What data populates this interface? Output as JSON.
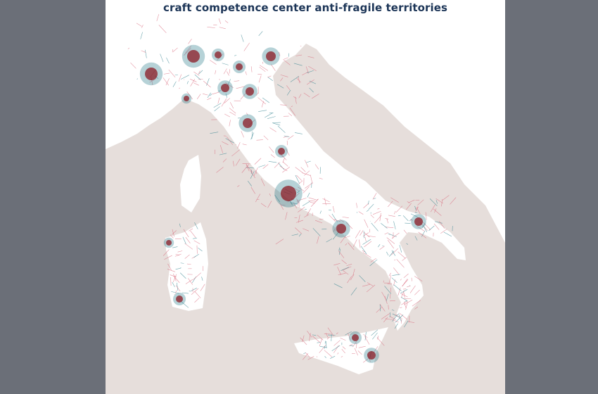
{
  "title": "craft competence center anti-fragile territories",
  "colors": {
    "frame": "#6b6f78",
    "sea": "#e6dedb",
    "land": "#ffffff",
    "roads": "#d9677a",
    "density": "#2d7f8c",
    "hotspot": "#8b1a24",
    "title": "#1c3557"
  }
}
